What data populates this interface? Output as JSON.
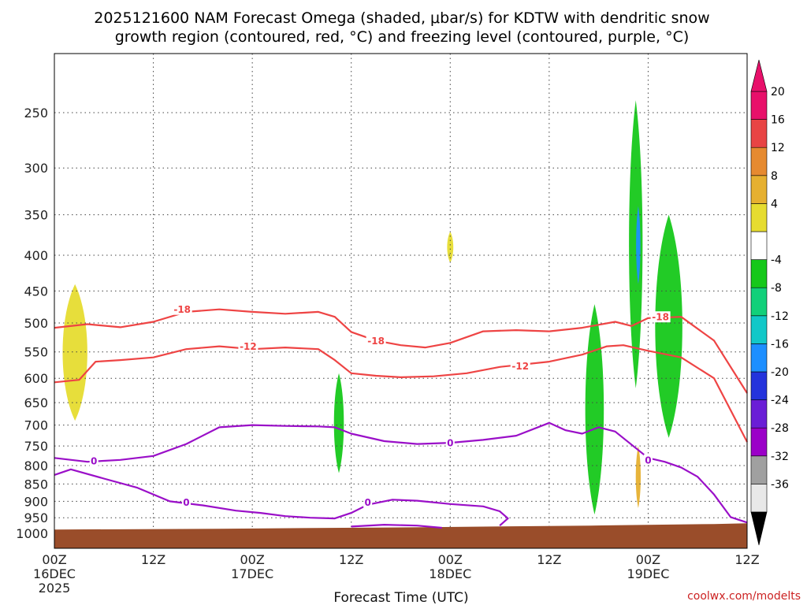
{
  "chart_data": {
    "type": "time-height cross section",
    "title_lines": [
      "2025121600 NAM Forecast Omega (shaded, μbar/s) for KDTW with dendritic snow",
      "growth region (contoured, red, °C) and freezing level (contoured, purple, °C)"
    ],
    "xlabel": "Forecast Time (UTC)",
    "ylabel": "",
    "credit": "coolwx.com/modelts",
    "x_ticks": [
      {
        "hour": 0,
        "label": "00Z",
        "sub": "16DEC",
        "sub2": "2025"
      },
      {
        "hour": 12,
        "label": "12Z",
        "sub": "",
        "sub2": ""
      },
      {
        "hour": 24,
        "label": "00Z",
        "sub": "17DEC",
        "sub2": ""
      },
      {
        "hour": 36,
        "label": "12Z",
        "sub": "",
        "sub2": ""
      },
      {
        "hour": 48,
        "label": "00Z",
        "sub": "18DEC",
        "sub2": ""
      },
      {
        "hour": 60,
        "label": "12Z",
        "sub": "",
        "sub2": ""
      },
      {
        "hour": 72,
        "label": "00Z",
        "sub": "19DEC",
        "sub2": ""
      },
      {
        "hour": 84,
        "label": "12Z",
        "sub": "",
        "sub2": ""
      }
    ],
    "y_ticks": [
      250,
      300,
      350,
      400,
      450,
      500,
      550,
      600,
      650,
      700,
      750,
      800,
      850,
      900,
      950,
      1000
    ],
    "x_range_hours": [
      0,
      84
    ],
    "y_range_hpa": [
      1025,
      200
    ],
    "colorbar": {
      "labels": [
        "20",
        "16",
        "12",
        "8",
        "4",
        "-4",
        "-8",
        "-12",
        "-16",
        "-20",
        "-24",
        "-28",
        "-32",
        "-36"
      ],
      "colors": [
        "#e8e8e8",
        "#a0a0a0",
        "#9b00c8",
        "#6a1ed6",
        "#2433dc",
        "#1d8fff",
        "#12c8c8",
        "#12d07a",
        "#16c81a",
        "#ffffff",
        "#e6dc30",
        "#e6b030",
        "#e68a30",
        "#e84444",
        "#e8106a"
      ],
      "top_arrow_color": "#e8106a",
      "bottom_arrow_color": "#000000"
    },
    "dendritic_contours": [
      {
        "value": -18,
        "label": "-18",
        "color": "#ee4444",
        "points": [
          [
            0,
            508
          ],
          [
            4,
            502
          ],
          [
            8,
            507
          ],
          [
            12,
            498
          ],
          [
            16,
            482
          ],
          [
            20,
            478
          ],
          [
            24,
            482
          ],
          [
            28,
            485
          ],
          [
            32,
            482
          ],
          [
            34,
            490
          ],
          [
            36,
            515
          ],
          [
            39,
            530
          ],
          [
            42,
            538
          ],
          [
            45,
            542
          ],
          [
            48,
            534
          ],
          [
            52,
            514
          ],
          [
            56,
            512
          ],
          [
            60,
            514
          ],
          [
            64,
            508
          ],
          [
            68,
            498
          ],
          [
            70,
            505
          ],
          [
            72,
            492
          ],
          [
            76,
            490
          ],
          [
            80,
            530
          ],
          [
            84,
            630
          ]
        ]
      },
      {
        "value": -12,
        "label": "-12",
        "color": "#ee4444",
        "points": [
          [
            0,
            608
          ],
          [
            3,
            603
          ],
          [
            5,
            568
          ],
          [
            8,
            565
          ],
          [
            12,
            560
          ],
          [
            16,
            545
          ],
          [
            20,
            540
          ],
          [
            24,
            545
          ],
          [
            28,
            542
          ],
          [
            32,
            545
          ],
          [
            34,
            565
          ],
          [
            36,
            590
          ],
          [
            39,
            595
          ],
          [
            42,
            598
          ],
          [
            46,
            596
          ],
          [
            50,
            590
          ],
          [
            54,
            578
          ],
          [
            60,
            568
          ],
          [
            64,
            555
          ],
          [
            67,
            540
          ],
          [
            69,
            538
          ],
          [
            72,
            548
          ],
          [
            76,
            560
          ],
          [
            80,
            600
          ],
          [
            84,
            740
          ]
        ]
      }
    ],
    "freezing_contours": [
      {
        "value": 0,
        "label": "0",
        "color": "#9a0fc8",
        "points": [
          [
            0,
            780
          ],
          [
            4,
            790
          ],
          [
            8,
            785
          ],
          [
            12,
            775
          ],
          [
            16,
            745
          ],
          [
            20,
            705
          ],
          [
            24,
            700
          ],
          [
            28,
            702
          ],
          [
            32,
            703
          ],
          [
            34,
            705
          ],
          [
            36,
            720
          ],
          [
            40,
            738
          ],
          [
            44,
            745
          ],
          [
            48,
            742
          ],
          [
            52,
            735
          ],
          [
            56,
            725
          ],
          [
            60,
            695
          ],
          [
            62,
            712
          ],
          [
            64,
            720
          ],
          [
            66,
            705
          ],
          [
            68,
            715
          ],
          [
            72,
            780
          ],
          [
            74,
            790
          ],
          [
            76,
            805
          ],
          [
            78,
            830
          ],
          [
            80,
            880
          ],
          [
            82,
            948
          ],
          [
            84,
            965
          ]
        ]
      },
      {
        "value": 0,
        "label": "0",
        "color": "#9a0fc8",
        "points": [
          [
            0,
            825
          ],
          [
            2,
            810
          ],
          [
            6,
            835
          ],
          [
            10,
            860
          ],
          [
            14,
            900
          ],
          [
            18,
            912
          ],
          [
            22,
            928
          ],
          [
            25,
            935
          ],
          [
            28,
            945
          ],
          [
            31,
            950
          ],
          [
            34,
            952
          ],
          [
            36,
            935
          ],
          [
            38,
            910
          ],
          [
            41,
            895
          ],
          [
            44,
            898
          ],
          [
            48,
            908
          ],
          [
            52,
            915
          ],
          [
            54,
            930
          ],
          [
            55,
            952
          ],
          [
            54,
            975
          ]
        ]
      },
      {
        "value": 0,
        "label": "0",
        "color": "#9a0fc8",
        "points": [
          [
            36,
            978
          ],
          [
            40,
            972
          ],
          [
            44,
            975
          ],
          [
            47,
            982
          ]
        ]
      }
    ],
    "dendritic_labels": [
      {
        "text": "-18",
        "hour": 15.5,
        "hpa": 478
      },
      {
        "text": "-12",
        "hour": 23.5,
        "hpa": 540
      },
      {
        "text": "-18",
        "hour": 39.0,
        "hpa": 530
      },
      {
        "text": "-12",
        "hour": 56.5,
        "hpa": 576
      },
      {
        "text": "-18",
        "hour": 73.5,
        "hpa": 490
      }
    ],
    "freezing_labels": [
      {
        "text": "0",
        "hour": 4.8,
        "hpa": 788
      },
      {
        "text": "0",
        "hour": 16.0,
        "hpa": 902
      },
      {
        "text": "0",
        "hour": 38.0,
        "hpa": 902
      },
      {
        "text": "0",
        "hour": 48.0,
        "hpa": 742
      },
      {
        "text": "0",
        "hour": 72.0,
        "hpa": 785
      }
    ],
    "omega_shading": [
      {
        "level": "4 to 8",
        "color": "#e6dc30",
        "hour_center": 2.5,
        "hpa_top": 440,
        "hpa_bottom": 690
      },
      {
        "level": "4 to 8",
        "color": "#e6dc30",
        "hour_center": 48.0,
        "hpa_top": 370,
        "hpa_bottom": 410
      },
      {
        "level": "-4 to -8",
        "color": "#16c81a",
        "hour_center": 34.5,
        "hpa_top": 590,
        "hpa_bottom": 820
      },
      {
        "level": "-4 to -8",
        "color": "#16c81a",
        "hour_center": 65.5,
        "hpa_top": 470,
        "hpa_bottom": 940
      },
      {
        "level": "-4 to -8",
        "color": "#16c81a",
        "hour_center": 70.5,
        "hpa_top": 240,
        "hpa_bottom": 620
      },
      {
        "level": "-4 to -8",
        "color": "#16c81a",
        "hour_center": 74.5,
        "hpa_top": 350,
        "hpa_bottom": 730
      },
      {
        "level": "-16 to -20",
        "color": "#1d8fff",
        "hour_center": 70.8,
        "hpa_top": 340,
        "hpa_bottom": 440
      },
      {
        "level": "8 to 12",
        "color": "#e6b030",
        "hour_center": 70.8,
        "hpa_top": 750,
        "hpa_bottom": 920
      }
    ],
    "terrain": {
      "color": "#9a4d2a",
      "surface_hpa": 980
    }
  }
}
